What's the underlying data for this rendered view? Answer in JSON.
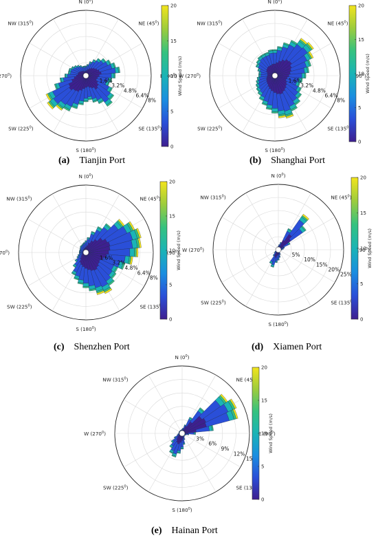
{
  "colorbar": {
    "title": "Wind Speed (m/s)",
    "ticks": [
      0,
      5,
      10,
      15,
      20
    ],
    "min": 0,
    "max": 20
  },
  "direction_labels": [
    "N (0",
    "NE (45",
    "E (90",
    "SE (135",
    "S (180",
    "SW (225",
    "W (270",
    "NW (315"
  ],
  "direction_sup": "0",
  "palette": [
    "#3e1f8f",
    "#2a4fd8",
    "#1a8ee0",
    "#1ab4b6",
    "#35c27f",
    "#9ccc3d",
    "#f2e41c"
  ],
  "chart_data": [
    {
      "type": "wind-rose",
      "panel": "(a)",
      "title": "Tianjin Port",
      "ring_labels": [
        "1.6%",
        "3.2%",
        "4.8%",
        "6.4%",
        "8%"
      ],
      "ring_max": 8,
      "bin_width_deg": 10,
      "directions_deg": [
        0,
        10,
        20,
        30,
        40,
        50,
        60,
        70,
        80,
        90,
        100,
        110,
        120,
        130,
        140,
        150,
        160,
        170,
        180,
        190,
        200,
        210,
        220,
        230,
        240,
        250,
        260,
        270,
        280,
        290,
        300,
        310,
        320,
        330,
        340,
        350
      ],
      "frequency_pct": [
        1.2,
        1.4,
        1.8,
        2.2,
        2.6,
        3.0,
        3.4,
        3.8,
        4.2,
        3.6,
        3.2,
        3.0,
        3.6,
        4.2,
        4.6,
        3.8,
        3.4,
        3.0,
        3.2,
        3.6,
        4.2,
        4.8,
        5.0,
        5.6,
        5.2,
        4.0,
        3.2,
        2.6,
        2.2,
        2.2,
        2.0,
        1.8,
        1.6,
        1.4,
        1.2,
        1.2
      ]
    },
    {
      "type": "wind-rose",
      "panel": "(b)",
      "title": "Shanghai Port",
      "ring_labels": [
        "1.6%",
        "3.2%",
        "4.8%",
        "6.4%",
        "8%"
      ],
      "ring_max": 8,
      "bin_width_deg": 10,
      "directions_deg": [
        0,
        10,
        20,
        30,
        40,
        50,
        60,
        70,
        80,
        90,
        100,
        110,
        120,
        130,
        140,
        150,
        160,
        170,
        180,
        190,
        200,
        210,
        220,
        230,
        240,
        250,
        260,
        270,
        280,
        290,
        300,
        310,
        320,
        330,
        340,
        350
      ],
      "frequency_pct": [
        3.2,
        3.6,
        4.2,
        4.8,
        5.4,
        5.6,
        5.0,
        4.6,
        4.2,
        3.8,
        3.4,
        3.2,
        3.6,
        4.0,
        4.4,
        4.8,
        5.2,
        5.0,
        4.6,
        4.2,
        3.8,
        3.4,
        3.0,
        2.8,
        2.6,
        2.4,
        2.2,
        2.0,
        2.0,
        2.2,
        2.6,
        2.8,
        3.0,
        3.0,
        3.0,
        3.2
      ]
    },
    {
      "type": "wind-rose",
      "panel": "(c)",
      "title": "Shenzhen Port",
      "ring_labels": [
        "1.6%",
        "3.2%",
        "4.8%",
        "6.4%",
        "8%"
      ],
      "ring_max": 8,
      "bin_width_deg": 10,
      "directions_deg": [
        0,
        10,
        20,
        30,
        40,
        50,
        60,
        70,
        80,
        90,
        100,
        110,
        120,
        130,
        140,
        150,
        160,
        170,
        180,
        190,
        200,
        210,
        220,
        230,
        240,
        250,
        260,
        270,
        280,
        290,
        300,
        310,
        320,
        330,
        340,
        350
      ],
      "frequency_pct": [
        1.4,
        1.8,
        2.6,
        3.4,
        4.2,
        5.4,
        6.2,
        6.6,
        6.4,
        6.0,
        5.4,
        4.8,
        4.2,
        4.4,
        4.8,
        5.2,
        5.0,
        4.6,
        4.2,
        3.8,
        3.4,
        3.0,
        2.2,
        1.6,
        1.2,
        1.0,
        0.8,
        0.8,
        0.8,
        0.8,
        0.8,
        0.9,
        1.0,
        1.0,
        1.1,
        1.2
      ]
    },
    {
      "type": "wind-rose",
      "panel": "(d)",
      "title": "Xiamen Port",
      "ring_labels": [
        "5%",
        "10%",
        "15%",
        "20%",
        "25%"
      ],
      "ring_max": 25,
      "bin_width_deg": 10,
      "directions_deg": [
        0,
        10,
        20,
        30,
        40,
        50,
        60,
        70,
        80,
        90,
        100,
        110,
        120,
        130,
        140,
        150,
        160,
        170,
        180,
        190,
        200,
        210,
        220,
        230,
        240,
        250,
        260,
        270,
        280,
        290,
        300,
        310,
        320,
        330,
        340,
        350
      ],
      "frequency_pct": [
        1.5,
        2.0,
        3.0,
        9.0,
        16.0,
        13.0,
        5.0,
        2.5,
        2.0,
        1.5,
        1.2,
        1.0,
        1.0,
        1.0,
        1.0,
        1.2,
        2.0,
        3.0,
        4.0,
        5.0,
        7.0,
        6.0,
        3.0,
        2.0,
        1.5,
        1.0,
        1.0,
        1.0,
        1.0,
        1.0,
        1.0,
        1.0,
        1.0,
        1.0,
        1.0,
        1.2
      ]
    },
    {
      "type": "wind-rose",
      "panel": "(e)",
      "title": "Hainan Port",
      "ring_labels": [
        "3%",
        "6%",
        "9%",
        "12%",
        "15%"
      ],
      "ring_max": 15,
      "bin_width_deg": 10,
      "directions_deg": [
        0,
        10,
        20,
        30,
        40,
        50,
        60,
        70,
        80,
        90,
        100,
        110,
        120,
        130,
        140,
        150,
        160,
        170,
        180,
        190,
        200,
        210,
        220,
        230,
        240,
        250,
        260,
        270,
        280,
        290,
        300,
        310,
        320,
        330,
        340,
        350
      ],
      "frequency_pct": [
        1.0,
        1.2,
        2.0,
        4.0,
        7.0,
        12.0,
        13.0,
        12.5,
        7.0,
        3.0,
        1.5,
        1.0,
        0.8,
        0.8,
        0.8,
        1.0,
        1.5,
        2.5,
        3.5,
        4.5,
        5.5,
        5.0,
        4.0,
        3.0,
        2.0,
        1.2,
        1.0,
        0.8,
        0.8,
        0.8,
        0.8,
        0.8,
        0.8,
        0.8,
        0.8,
        0.9
      ]
    }
  ]
}
